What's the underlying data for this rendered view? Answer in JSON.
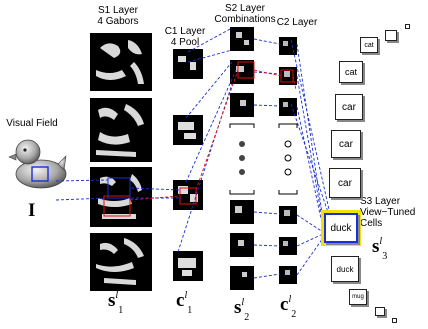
{
  "labels": {
    "s1_layer": "S1 Layer",
    "s1_gabors": "4 Gabors",
    "c1_layer": "C1 Layer",
    "c1_pool": "4 Pool",
    "s2_layer": "S2 Layer",
    "s2_combinations": "Combinations",
    "c2_layer": "C2 Layer",
    "visual_field": "Visual Field",
    "s3_layer": "S3 Layer",
    "s3_view_tuned": "View−Tuned",
    "s3_cells": "Cells"
  },
  "symbols": {
    "input": "I",
    "s1": {
      "base": "s",
      "sup": "l",
      "sub": "1"
    },
    "c1": {
      "base": "c",
      "sup": "l",
      "sub": "1"
    },
    "s2": {
      "base": "s",
      "sup": "l",
      "sub": "2"
    },
    "c2": {
      "base": "c",
      "sup": "l",
      "sub": "2"
    },
    "s3": {
      "base": "s",
      "sup": "l",
      "sub": "3"
    }
  },
  "view_tuned_cells": [
    "cat",
    "cat",
    "car",
    "car",
    "car",
    "duck",
    "duck",
    "mug"
  ],
  "colors": {
    "connection": "#1a2fd6",
    "rf_highlight": "#e01010",
    "duck_highlight": "#f0e010"
  }
}
